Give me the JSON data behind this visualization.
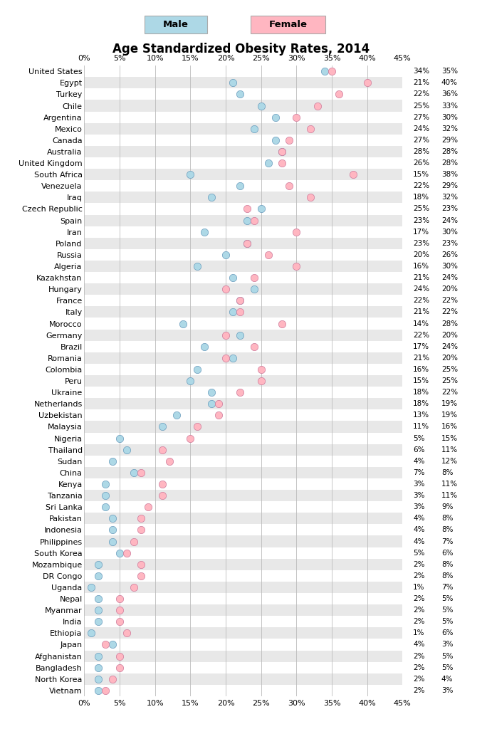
{
  "title": "Age Standardized Obesity Rates, 2014",
  "legend_male": "Male",
  "legend_female": "Female",
  "male_color": "#ADD8E6",
  "female_color": "#FFB6C1",
  "male_edge_color": "#6699BB",
  "female_edge_color": "#CC7799",
  "xlim": [
    0,
    45
  ],
  "xticks": [
    0,
    5,
    10,
    15,
    20,
    25,
    30,
    35,
    40,
    45
  ],
  "countries": [
    "United States",
    "Egypt",
    "Turkey",
    "Chile",
    "Argentina",
    "Mexico",
    "Canada",
    "Australia",
    "United Kingdom",
    "South Africa",
    "Venezuela",
    "Iraq",
    "Czech Republic",
    "Spain",
    "Iran",
    "Poland",
    "Russia",
    "Algeria",
    "Kazakhstan",
    "Hungary",
    "France",
    "Italy",
    "Morocco",
    "Germany",
    "Brazil",
    "Romania",
    "Colombia",
    "Peru",
    "Ukraine",
    "Netherlands",
    "Uzbekistan",
    "Malaysia",
    "Nigeria",
    "Thailand",
    "Sudan",
    "China",
    "Kenya",
    "Tanzania",
    "Sri Lanka",
    "Pakistan",
    "Indonesia",
    "Philippines",
    "South Korea",
    "Mozambique",
    "DR Congo",
    "Uganda",
    "Nepal",
    "Myanmar",
    "India",
    "Ethiopia",
    "Japan",
    "Afghanistan",
    "Bangladesh",
    "North Korea",
    "Vietnam"
  ],
  "male_values": [
    34,
    21,
    22,
    25,
    27,
    24,
    27,
    28,
    26,
    15,
    22,
    18,
    25,
    23,
    17,
    23,
    20,
    16,
    21,
    24,
    22,
    21,
    14,
    22,
    17,
    21,
    16,
    15,
    18,
    18,
    13,
    11,
    5,
    6,
    4,
    7,
    3,
    3,
    3,
    4,
    4,
    4,
    5,
    2,
    2,
    1,
    2,
    2,
    2,
    1,
    4,
    2,
    2,
    2,
    2
  ],
  "female_values": [
    35,
    40,
    36,
    33,
    30,
    32,
    29,
    28,
    28,
    38,
    29,
    32,
    23,
    24,
    30,
    23,
    26,
    30,
    24,
    20,
    22,
    22,
    28,
    20,
    24,
    20,
    25,
    25,
    22,
    19,
    19,
    16,
    15,
    11,
    12,
    8,
    11,
    11,
    9,
    8,
    8,
    7,
    6,
    8,
    8,
    7,
    5,
    5,
    5,
    6,
    3,
    5,
    5,
    4,
    3
  ],
  "row_colors": [
    "#FFFFFF",
    "#E8E8E8"
  ],
  "grid_color": "#BBBBBB",
  "dot_size": 55,
  "title_fontsize": 12,
  "label_fontsize": 8,
  "tick_fontsize": 8,
  "annot_fontsize": 7.5
}
